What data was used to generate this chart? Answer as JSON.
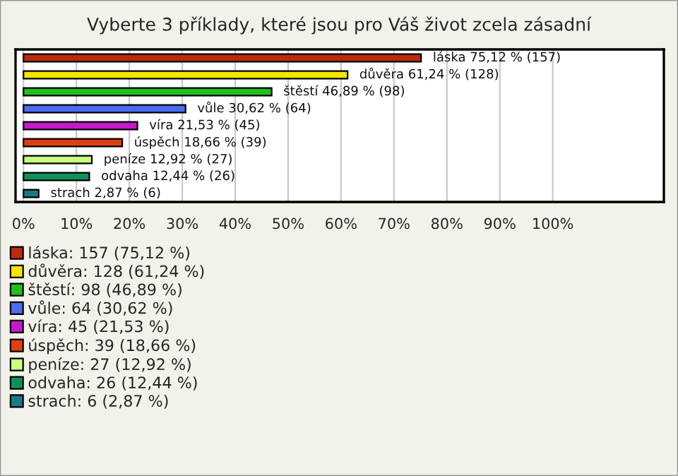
{
  "chart_data": {
    "type": "bar",
    "orientation": "horizontal",
    "stacked": true,
    "title": "Vyberte 3 příklady, které jsou pro Váš život zcela zásadní",
    "categories": [
      null,
      null,
      null,
      null,
      null,
      null,
      null,
      null,
      null
    ],
    "series": [
      {
        "name": "láska: 157 (75,12 %)",
        "color": "#c0280f",
        "values": [
          75.12,
          null,
          null,
          null,
          null,
          null,
          null,
          null,
          null
        ],
        "value_labels": [
          "láska 75,12 % (157)",
          null,
          null,
          null,
          null,
          null,
          null,
          null,
          null
        ]
      },
      {
        "name": "důvěra: 128 (61,24 %)",
        "color": "#f5e600",
        "values": [
          null,
          61.24,
          null,
          null,
          null,
          null,
          null,
          null,
          null
        ],
        "value_labels": [
          null,
          "důvěra 61,24 % (128)",
          null,
          null,
          null,
          null,
          null,
          null,
          null
        ]
      },
      {
        "name": "štěstí: 98 (46,89 %)",
        "color": "#1fbf1f",
        "values": [
          null,
          null,
          46.89,
          null,
          null,
          null,
          null,
          null,
          null
        ],
        "value_labels": [
          null,
          null,
          "štěstí 46,89 % (98)",
          null,
          null,
          null,
          null,
          null,
          null
        ]
      },
      {
        "name": "vůle: 64 (30,62 %)",
        "color": "#4a6cf0",
        "values": [
          null,
          null,
          null,
          30.62,
          null,
          null,
          null,
          null,
          null
        ],
        "value_labels": [
          null,
          null,
          null,
          "vůle 30,62 % (64)",
          null,
          null,
          null,
          null,
          null
        ]
      },
      {
        "name": "víra: 45 (21,53 %)",
        "color": "#c21ac8",
        "values": [
          null,
          null,
          null,
          null,
          21.53,
          null,
          null,
          null,
          null
        ],
        "value_labels": [
          null,
          null,
          null,
          null,
          "víra 21,53 % (45)",
          null,
          null,
          null,
          null
        ]
      },
      {
        "name": "úspěch: 39 (18,66 %)",
        "color": "#e04010",
        "values": [
          null,
          null,
          null,
          null,
          null,
          18.66,
          null,
          null,
          null
        ],
        "value_labels": [
          null,
          null,
          null,
          null,
          null,
          "úspěch 18,66 % (39)",
          null,
          null,
          null
        ]
      },
      {
        "name": "peníze: 27 (12,92 %)",
        "color": "#c8ff80",
        "values": [
          null,
          null,
          null,
          null,
          null,
          null,
          12.92,
          null,
          null
        ],
        "value_labels": [
          null,
          null,
          null,
          null,
          null,
          null,
          "peníze 12,92 % (27)",
          null,
          null
        ]
      },
      {
        "name": "odvaha: 26 (12,44 %)",
        "color": "#10905a",
        "values": [
          null,
          null,
          null,
          null,
          null,
          null,
          null,
          12.44,
          null
        ],
        "value_labels": [
          null,
          null,
          null,
          null,
          null,
          null,
          null,
          "odvaha 12,44 % (26)",
          null
        ]
      },
      {
        "name": "strach: 6 (2,87 %)",
        "color": "#1a7a8a",
        "values": [
          null,
          null,
          null,
          null,
          null,
          null,
          null,
          null,
          2.87
        ],
        "value_labels": [
          null,
          null,
          null,
          null,
          null,
          null,
          null,
          null,
          "strach 2,87 % (6)"
        ]
      }
    ],
    "xlim": [
      -1.5,
      121
    ],
    "xticks": [
      {
        "value": 0,
        "label": "0%"
      },
      {
        "value": 10,
        "label": "10%"
      },
      {
        "value": 20,
        "label": "20%"
      },
      {
        "value": 30,
        "label": "30%"
      },
      {
        "value": 40,
        "label": "40%"
      },
      {
        "value": 50,
        "label": "50%"
      },
      {
        "value": 60,
        "label": "60%"
      },
      {
        "value": 70,
        "label": "70%"
      },
      {
        "value": 80,
        "label": "80%"
      },
      {
        "value": 90,
        "label": "90%"
      },
      {
        "value": 100,
        "label": "100%"
      }
    ],
    "grid": "x",
    "legend": "bottom left"
  }
}
